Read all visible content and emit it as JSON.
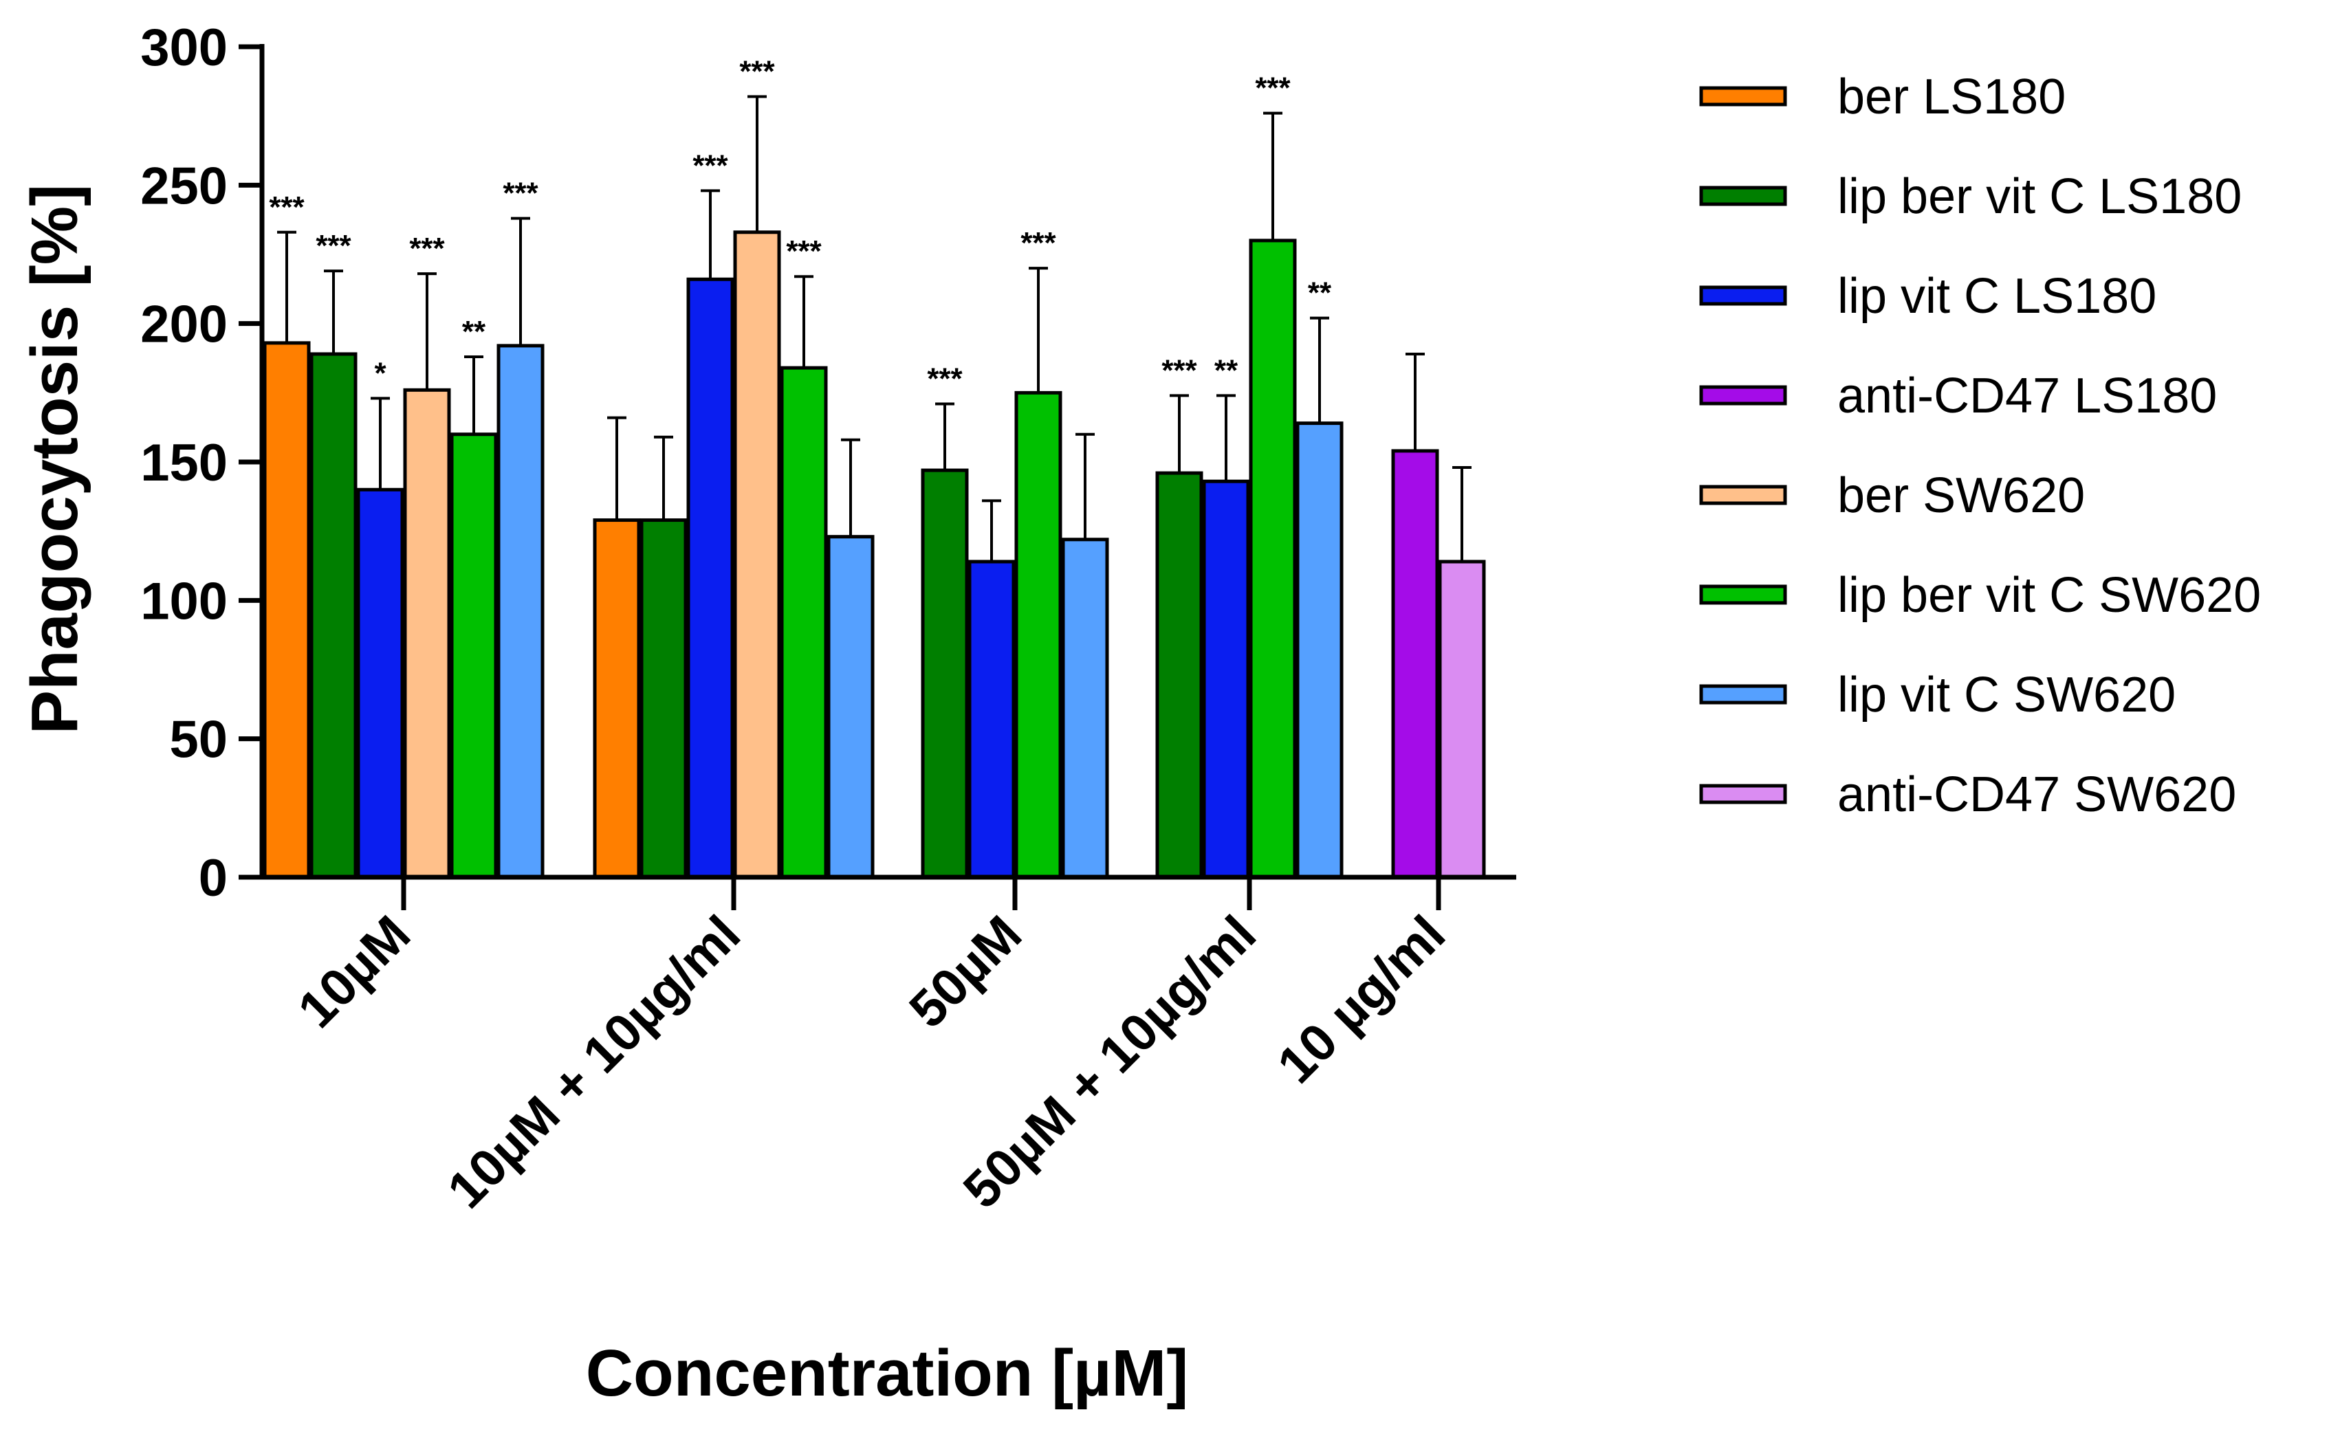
{
  "chart_data": {
    "type": "bar",
    "title": "",
    "xlabel": "Concentration [µM]",
    "ylabel": "Phagocytosis [%]",
    "ylim": [
      0,
      300
    ],
    "yticks": [
      "0",
      "50",
      "100",
      "150",
      "200",
      "250",
      "300"
    ],
    "groups": [
      {
        "label": "10µM",
        "bars": [
          {
            "series": "ber LS180",
            "value": 193,
            "err": 40,
            "sig": "***"
          },
          {
            "series": "lip ber vit C LS180",
            "value": 189,
            "err": 30,
            "sig": "***"
          },
          {
            "series": "lip vit C LS180",
            "value": 140,
            "err": 33,
            "sig": "*"
          },
          {
            "series": "ber SW620",
            "value": 176,
            "err": 42,
            "sig": "***"
          },
          {
            "series": "lip ber vit C SW620",
            "value": 160,
            "err": 28,
            "sig": "**"
          },
          {
            "series": "lip vit C SW620",
            "value": 192,
            "err": 46,
            "sig": "***"
          }
        ]
      },
      {
        "label": "10µM + 10µg/ml",
        "bars": [
          {
            "series": "ber LS180",
            "value": 129,
            "err": 37,
            "sig": ""
          },
          {
            "series": "lip ber vit C LS180",
            "value": 129,
            "err": 30,
            "sig": ""
          },
          {
            "series": "lip vit C LS180",
            "value": 216,
            "err": 32,
            "sig": "***"
          },
          {
            "series": "ber SW620",
            "value": 233,
            "err": 49,
            "sig": "***"
          },
          {
            "series": "lip ber vit C SW620",
            "value": 184,
            "err": 33,
            "sig": "***"
          },
          {
            "series": "lip vit C SW620",
            "value": 123,
            "err": 35,
            "sig": ""
          }
        ]
      },
      {
        "label": "50µM",
        "bars": [
          {
            "series": "lip ber vit C LS180",
            "value": 147,
            "err": 24,
            "sig": "***"
          },
          {
            "series": "lip vit C LS180",
            "value": 114,
            "err": 22,
            "sig": ""
          },
          {
            "series": "lip ber vit C SW620",
            "value": 175,
            "err": 45,
            "sig": "***"
          },
          {
            "series": "lip vit C SW620",
            "value": 122,
            "err": 38,
            "sig": ""
          }
        ]
      },
      {
        "label": "50µM + 10µg/ml",
        "bars": [
          {
            "series": "lip ber vit C LS180",
            "value": 146,
            "err": 28,
            "sig": "***"
          },
          {
            "series": "lip vit C LS180",
            "value": 143,
            "err": 31,
            "sig": "**"
          },
          {
            "series": "lip ber vit C SW620",
            "value": 230,
            "err": 46,
            "sig": "***"
          },
          {
            "series": "lip vit C SW620",
            "value": 164,
            "err": 38,
            "sig": "**"
          }
        ]
      },
      {
        "label": "10 µg/ml",
        "bars": [
          {
            "series": "anti-CD47 LS180",
            "value": 154,
            "err": 35,
            "sig": ""
          },
          {
            "series": "anti-CD47 SW620",
            "value": 114,
            "err": 34,
            "sig": ""
          }
        ]
      }
    ],
    "legend": [
      {
        "name": "ber LS180",
        "color": "#FF7F00"
      },
      {
        "name": "lip ber vit C LS180",
        "color": "#007F00"
      },
      {
        "name": "lip vit C LS180",
        "color": "#0A1EF0"
      },
      {
        "name": "anti-CD47 LS180",
        "color": "#A40CE8"
      },
      {
        "name": "ber SW620",
        "color": "#FFC08A"
      },
      {
        "name": "lip ber vit C SW620",
        "color": "#00C000"
      },
      {
        "name": "lip vit C SW620",
        "color": "#55A0FF"
      },
      {
        "name": "anti-CD47 SW620",
        "color": "#DA8CF2"
      }
    ]
  }
}
